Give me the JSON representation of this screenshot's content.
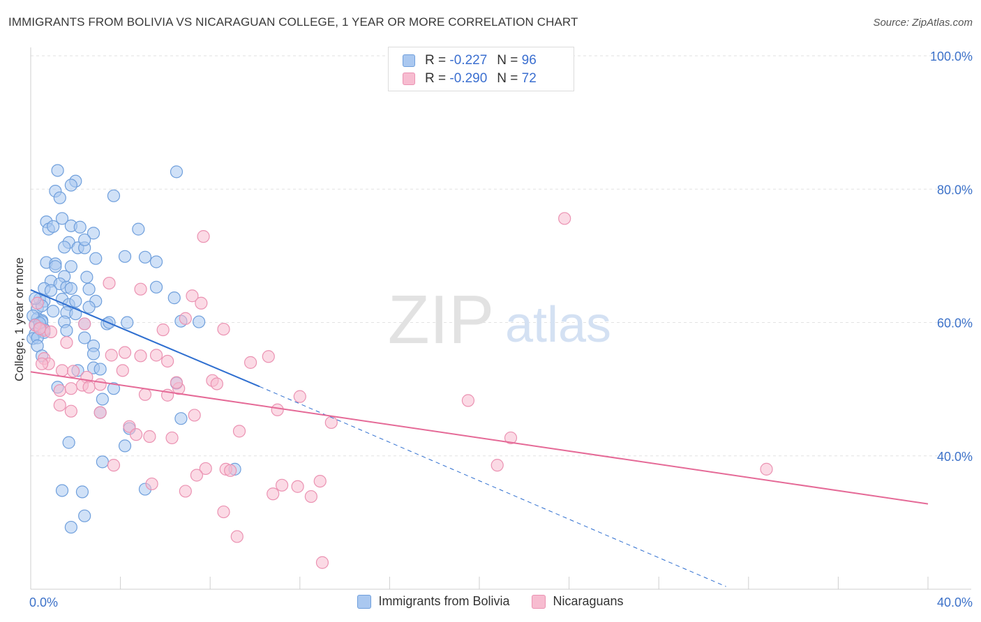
{
  "header": {
    "title": "IMMIGRANTS FROM BOLIVIA VS NICARAGUAN COLLEGE, 1 YEAR OR MORE CORRELATION CHART",
    "source": "Source: ZipAtlas.com"
  },
  "watermark": {
    "zip": "ZIP",
    "atlas": "atlas"
  },
  "legend": {
    "rows": [
      {
        "r_label": "R =",
        "r_value": "-0.227",
        "n_label": "N =",
        "n_value": "96"
      },
      {
        "r_label": "R =",
        "r_value": "-0.290",
        "n_label": "N =",
        "n_value": "72"
      }
    ]
  },
  "bottom_legend": {
    "items": [
      {
        "label": "Immigrants from Bolivia"
      },
      {
        "label": "Nicaraguans"
      }
    ]
  },
  "colors": {
    "bolivia_fill": "#aac8f0",
    "bolivia_stroke": "#6f9fdc",
    "bolivia_line": "#2f6fd0",
    "nicaragua_fill": "#f7bcd0",
    "nicaragua_stroke": "#eb92b2",
    "nicaragua_line": "#e56a97",
    "tick_label": "#3d72c9",
    "grid": "#e2e2e2"
  },
  "chart_data": {
    "type": "scatter",
    "title": "IMMIGRANTS FROM BOLIVIA VS NICARAGUAN COLLEGE, 1 YEAR OR MORE CORRELATION CHART",
    "xlabel": "",
    "ylabel": "College, 1 year or more",
    "xlim": [
      0,
      40
    ],
    "ylim": [
      20,
      100
    ],
    "x_tick_labels": [
      {
        "value": 0,
        "label": "0.0%"
      },
      {
        "value": 40,
        "label": "40.0%"
      }
    ],
    "y_tick_labels": [
      {
        "value": 40,
        "label": "40.0%"
      },
      {
        "value": 60,
        "label": "60.0%"
      },
      {
        "value": 80,
        "label": "80.0%"
      },
      {
        "value": 100,
        "label": "100.0%"
      }
    ],
    "grid": true,
    "legend_position": "top-center",
    "series": [
      {
        "name": "Immigrants from Bolivia",
        "r": -0.227,
        "n": 96,
        "trend": {
          "x0": 0,
          "y0": 64.9,
          "x1": 10.2,
          "y1": 50.4,
          "dash_x1": 31.0,
          "dash_y1": 20.4
        },
        "points": [
          [
            1.2,
            82.8
          ],
          [
            2.0,
            81.2
          ],
          [
            1.8,
            80.6
          ],
          [
            1.1,
            79.7
          ],
          [
            1.3,
            78.7
          ],
          [
            3.7,
            79.0
          ],
          [
            6.5,
            82.6
          ],
          [
            0.7,
            75.1
          ],
          [
            1.4,
            75.6
          ],
          [
            0.8,
            74.0
          ],
          [
            1.0,
            74.4
          ],
          [
            1.8,
            74.5
          ],
          [
            2.2,
            74.3
          ],
          [
            2.8,
            73.4
          ],
          [
            4.8,
            74.0
          ],
          [
            1.7,
            72.0
          ],
          [
            2.1,
            71.2
          ],
          [
            2.4,
            71.2
          ],
          [
            1.5,
            71.3
          ],
          [
            2.4,
            72.4
          ],
          [
            4.2,
            69.9
          ],
          [
            5.1,
            69.8
          ],
          [
            0.7,
            69.0
          ],
          [
            1.1,
            68.8
          ],
          [
            1.1,
            68.4
          ],
          [
            1.8,
            68.4
          ],
          [
            2.9,
            69.6
          ],
          [
            5.6,
            69.1
          ],
          [
            1.5,
            66.9
          ],
          [
            2.5,
            66.8
          ],
          [
            0.9,
            66.2
          ],
          [
            1.3,
            65.8
          ],
          [
            0.6,
            65.1
          ],
          [
            1.6,
            65.3
          ],
          [
            0.9,
            64.8
          ],
          [
            1.8,
            65.1
          ],
          [
            2.6,
            65.0
          ],
          [
            5.6,
            65.3
          ],
          [
            0.4,
            63.5
          ],
          [
            0.6,
            63.2
          ],
          [
            1.4,
            63.5
          ],
          [
            1.7,
            62.7
          ],
          [
            2.0,
            63.2
          ],
          [
            2.9,
            63.2
          ],
          [
            6.4,
            63.7
          ],
          [
            0.3,
            62.1
          ],
          [
            0.5,
            62.5
          ],
          [
            2.6,
            62.3
          ],
          [
            1.6,
            61.5
          ],
          [
            0.3,
            60.6
          ],
          [
            0.5,
            60.3
          ],
          [
            1.5,
            60.1
          ],
          [
            2.4,
            59.8
          ],
          [
            0.2,
            59.7
          ],
          [
            3.4,
            59.8
          ],
          [
            0.4,
            59.3
          ],
          [
            0.6,
            59.0
          ],
          [
            1.6,
            58.8
          ],
          [
            0.2,
            58.3
          ],
          [
            0.6,
            58.5
          ],
          [
            0.1,
            57.6
          ],
          [
            0.3,
            57.7
          ],
          [
            2.4,
            57.7
          ],
          [
            4.3,
            60.0
          ],
          [
            3.5,
            60.0
          ],
          [
            7.5,
            60.1
          ],
          [
            0.3,
            56.5
          ],
          [
            2.8,
            56.5
          ],
          [
            0.5,
            55.0
          ],
          [
            2.8,
            55.3
          ],
          [
            2.8,
            53.2
          ],
          [
            3.1,
            53.0
          ],
          [
            2.1,
            52.8
          ],
          [
            6.5,
            50.9
          ],
          [
            1.2,
            50.3
          ],
          [
            3.7,
            50.1
          ],
          [
            3.2,
            48.5
          ],
          [
            3.1,
            46.5
          ],
          [
            6.7,
            45.6
          ],
          [
            4.4,
            44.1
          ],
          [
            1.7,
            42.0
          ],
          [
            4.2,
            41.5
          ],
          [
            3.2,
            39.1
          ],
          [
            9.1,
            38.0
          ],
          [
            1.4,
            34.8
          ],
          [
            2.3,
            34.6
          ],
          [
            5.1,
            35.0
          ],
          [
            2.4,
            31.0
          ],
          [
            1.8,
            29.3
          ],
          [
            0.2,
            63.6
          ],
          [
            0.5,
            60.1
          ],
          [
            1.0,
            61.7
          ],
          [
            0.1,
            61.0
          ],
          [
            2.0,
            61.3
          ],
          [
            6.7,
            60.2
          ],
          [
            0.4,
            59.9
          ]
        ]
      },
      {
        "name": "Nicaraguans",
        "r": -0.29,
        "n": 72,
        "trend": {
          "x0": 0,
          "y0": 52.6,
          "x1": 40,
          "y1": 32.8
        },
        "points": [
          [
            23.8,
            75.6
          ],
          [
            7.7,
            72.9
          ],
          [
            3.5,
            65.9
          ],
          [
            4.9,
            65.0
          ],
          [
            7.2,
            64.0
          ],
          [
            7.6,
            62.9
          ],
          [
            0.3,
            62.9
          ],
          [
            6.9,
            60.6
          ],
          [
            5.9,
            58.9
          ],
          [
            8.6,
            59.0
          ],
          [
            2.4,
            59.8
          ],
          [
            0.6,
            58.8
          ],
          [
            0.9,
            58.6
          ],
          [
            1.6,
            57.0
          ],
          [
            4.2,
            55.5
          ],
          [
            3.6,
            55.1
          ],
          [
            4.9,
            55.0
          ],
          [
            5.6,
            55.1
          ],
          [
            10.6,
            54.9
          ],
          [
            0.6,
            54.6
          ],
          [
            0.8,
            53.8
          ],
          [
            0.5,
            53.8
          ],
          [
            6.1,
            54.2
          ],
          [
            9.8,
            54.0
          ],
          [
            4.1,
            52.8
          ],
          [
            1.4,
            52.8
          ],
          [
            1.9,
            52.7
          ],
          [
            2.5,
            51.8
          ],
          [
            2.3,
            50.6
          ],
          [
            2.6,
            50.3
          ],
          [
            3.1,
            50.7
          ],
          [
            8.1,
            51.3
          ],
          [
            8.3,
            50.8
          ],
          [
            6.6,
            50.1
          ],
          [
            1.3,
            49.8
          ],
          [
            5.1,
            49.2
          ],
          [
            6.1,
            49.1
          ],
          [
            12.0,
            48.9
          ],
          [
            19.5,
            48.3
          ],
          [
            1.3,
            47.6
          ],
          [
            1.8,
            46.7
          ],
          [
            11.0,
            46.9
          ],
          [
            3.1,
            46.5
          ],
          [
            7.3,
            46.1
          ],
          [
            13.4,
            45.0
          ],
          [
            4.4,
            44.4
          ],
          [
            9.3,
            43.7
          ],
          [
            4.7,
            43.2
          ],
          [
            5.3,
            42.9
          ],
          [
            6.3,
            42.7
          ],
          [
            21.4,
            42.7
          ],
          [
            3.7,
            38.6
          ],
          [
            7.8,
            38.1
          ],
          [
            8.7,
            38.0
          ],
          [
            20.8,
            38.6
          ],
          [
            32.8,
            38.0
          ],
          [
            7.4,
            37.1
          ],
          [
            5.4,
            35.8
          ],
          [
            12.9,
            36.2
          ],
          [
            11.2,
            35.6
          ],
          [
            11.9,
            35.4
          ],
          [
            6.9,
            34.7
          ],
          [
            10.8,
            34.3
          ],
          [
            12.5,
            33.9
          ],
          [
            8.6,
            31.6
          ],
          [
            9.2,
            27.9
          ],
          [
            13.0,
            24.0
          ],
          [
            0.2,
            59.6
          ],
          [
            0.4,
            59.1
          ],
          [
            1.8,
            50.1
          ],
          [
            6.5,
            51.0
          ],
          [
            8.9,
            37.8
          ]
        ]
      }
    ]
  }
}
